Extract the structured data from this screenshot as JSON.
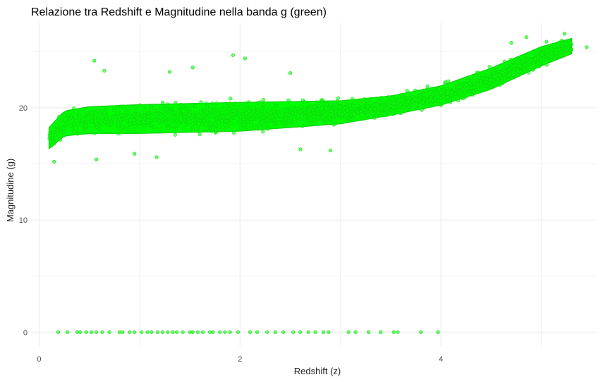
{
  "chart_data": {
    "type": "scatter",
    "title": "Relazione tra Redshift e Magnitudine nella banda g (green)",
    "xlabel": "Redshift (z)",
    "ylabel": "Magnitudine (g)",
    "xlim": [
      -0.08,
      5.55
    ],
    "ylim": [
      -1.3,
      27.6
    ],
    "x_ticks": [
      0,
      2,
      4
    ],
    "x_tick_labels": [
      "0",
      "2",
      "4"
    ],
    "x_minor_ticks": [
      1,
      3,
      5
    ],
    "y_ticks": [
      0,
      10,
      20
    ],
    "y_tick_labels": [
      "0",
      "10",
      "20"
    ],
    "y_minor_ticks": [
      5,
      15,
      25
    ],
    "grid": true,
    "legend": "none",
    "point_color": "#00ff00",
    "point_stroke": "#14d614",
    "background": "#ffffff",
    "grid_color": "#ebebeb",
    "series": [
      {
        "marker": "circle",
        "main_band": {
          "x_range": [
            0.1,
            5.3
          ],
          "trend_z": [
            0.1,
            0.25,
            0.5,
            1.0,
            2.0,
            3.0,
            3.5,
            4.0,
            4.5,
            5.0,
            5.3
          ],
          "trend_g": [
            17.3,
            18.6,
            18.9,
            19.0,
            19.2,
            19.6,
            20.2,
            21.1,
            22.6,
            24.6,
            25.5
          ],
          "half_width": [
            1.1,
            1.3,
            1.4,
            1.5,
            1.5,
            1.2,
            1.0,
            1.0,
            1.1,
            1.0,
            0.8
          ]
        },
        "upper_outliers": [
          {
            "x": 0.55,
            "y": 24.2
          },
          {
            "x": 1.53,
            "y": 23.6
          },
          {
            "x": 1.93,
            "y": 24.7
          },
          {
            "x": 2.05,
            "y": 24.4
          },
          {
            "x": 0.65,
            "y": 23.3
          },
          {
            "x": 1.3,
            "y": 23.2
          },
          {
            "x": 2.5,
            "y": 23.1
          },
          {
            "x": 4.85,
            "y": 26.3
          },
          {
            "x": 5.23,
            "y": 26.6
          },
          {
            "x": 5.45,
            "y": 25.4
          },
          {
            "x": 4.7,
            "y": 25.8
          },
          {
            "x": 5.05,
            "y": 25.9
          }
        ],
        "lower_outliers": [
          {
            "x": 0.15,
            "y": 15.2
          },
          {
            "x": 0.57,
            "y": 15.4
          },
          {
            "x": 1.17,
            "y": 15.6
          },
          {
            "x": 0.95,
            "y": 15.9
          },
          {
            "x": 2.6,
            "y": 16.3
          },
          {
            "x": 2.9,
            "y": 16.2
          }
        ],
        "zero_magnitude_points": {
          "y": 0,
          "x": [
            0.19,
            0.28,
            0.38,
            0.41,
            0.47,
            0.52,
            0.57,
            0.63,
            0.7,
            0.8,
            0.83,
            0.9,
            0.95,
            1.02,
            1.08,
            1.12,
            1.18,
            1.23,
            1.28,
            1.33,
            1.37,
            1.43,
            1.5,
            1.53,
            1.58,
            1.63,
            1.7,
            1.73,
            1.8,
            1.85,
            1.9,
            1.98,
            2.1,
            2.17,
            2.27,
            2.35,
            2.43,
            2.53,
            2.6,
            2.68,
            2.75,
            2.83,
            2.88,
            3.08,
            3.15,
            3.28,
            3.4,
            3.53,
            3.57,
            3.8,
            3.97
          ]
        }
      }
    ]
  }
}
